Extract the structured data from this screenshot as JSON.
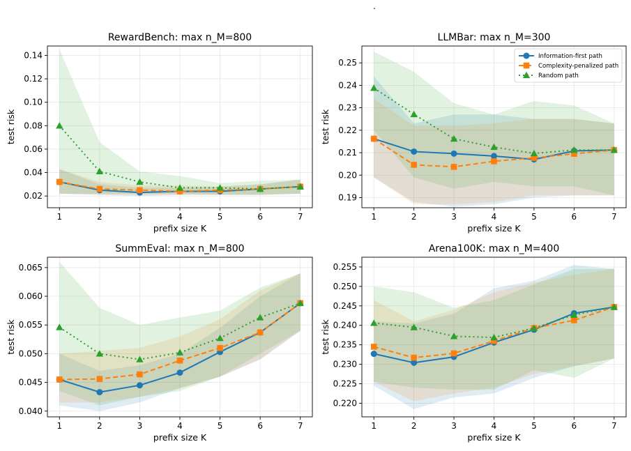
{
  "figure_note": ".",
  "colors": {
    "info": "#1f77b4",
    "complexity": "#ff7f0e",
    "random": "#2ca02c",
    "grid": "#e6e6e6"
  },
  "legend_entries": [
    "Information-first path",
    "Complexity-penalized path",
    "Random path"
  ],
  "chart_data": [
    {
      "type": "line",
      "title": "RewardBench: max n_M=800",
      "xlabel": "prefix size K",
      "ylabel": "test risk",
      "x": [
        1,
        2,
        3,
        4,
        5,
        6,
        7
      ],
      "ylim": [
        0.01,
        0.148
      ],
      "yticks": [
        "0.02",
        "0.04",
        "0.06",
        "0.08",
        "0.10",
        "0.12",
        "0.14"
      ],
      "ytick_values": [
        0.02,
        0.04,
        0.06,
        0.08,
        0.1,
        0.12,
        0.14
      ],
      "grid": true,
      "legend": "none",
      "series": [
        {
          "name": "Information-first path",
          "values": [
            0.032,
            0.025,
            0.023,
            0.024,
            0.024,
            0.026,
            0.028
          ],
          "lower": [
            0.022,
            0.021,
            0.02,
            0.021,
            0.021,
            0.021,
            0.022
          ],
          "upper": [
            0.043,
            0.03,
            0.027,
            0.027,
            0.028,
            0.03,
            0.034
          ]
        },
        {
          "name": "Complexity-penalized path",
          "values": [
            0.032,
            0.026,
            0.025,
            0.024,
            0.025,
            0.026,
            0.028
          ],
          "lower": [
            0.022,
            0.021,
            0.021,
            0.021,
            0.021,
            0.021,
            0.022
          ],
          "upper": [
            0.043,
            0.032,
            0.029,
            0.029,
            0.028,
            0.03,
            0.034
          ]
        },
        {
          "name": "Random path",
          "values": [
            0.08,
            0.041,
            0.032,
            0.027,
            0.027,
            0.026,
            0.028
          ],
          "lower": [
            0.022,
            0.022,
            0.022,
            0.022,
            0.021,
            0.021,
            0.022
          ],
          "upper": [
            0.145,
            0.066,
            0.041,
            0.037,
            0.031,
            0.033,
            0.034
          ]
        }
      ]
    },
    {
      "type": "line",
      "title": "LLMBar: max n_M=300",
      "xlabel": "prefix size K",
      "ylabel": "test risk",
      "x": [
        1,
        2,
        3,
        4,
        5,
        6,
        7
      ],
      "ylim": [
        0.1855,
        0.2575
      ],
      "yticks": [
        "0.19",
        "0.20",
        "0.21",
        "0.22",
        "0.23",
        "0.24",
        "0.25"
      ],
      "ytick_values": [
        0.19,
        0.2,
        0.21,
        0.22,
        0.23,
        0.24,
        0.25
      ],
      "grid": true,
      "legend": "top-right",
      "series": [
        {
          "name": "Information-first path",
          "values": [
            0.2162,
            0.2105,
            0.2096,
            0.2085,
            0.207,
            0.2108,
            0.2112
          ],
          "lower": [
            0.199,
            0.188,
            0.186,
            0.187,
            0.19,
            0.191,
            0.191
          ],
          "upper": [
            0.244,
            0.223,
            0.227,
            0.227,
            0.225,
            0.225,
            0.223
          ]
        },
        {
          "name": "Complexity-penalized path",
          "values": [
            0.2162,
            0.2046,
            0.2037,
            0.2062,
            0.2077,
            0.2095,
            0.2112
          ],
          "lower": [
            0.199,
            0.187,
            0.187,
            0.188,
            0.191,
            0.191,
            0.191
          ],
          "upper": [
            0.234,
            0.222,
            0.222,
            0.223,
            0.225,
            0.225,
            0.223
          ]
        },
        {
          "name": "Random path",
          "values": [
            0.2388,
            0.2271,
            0.2162,
            0.2125,
            0.2097,
            0.2112,
            0.2112
          ],
          "lower": [
            0.22,
            0.199,
            0.194,
            0.197,
            0.195,
            0.195,
            0.191
          ],
          "upper": [
            0.255,
            0.246,
            0.232,
            0.227,
            0.233,
            0.231,
            0.223
          ]
        }
      ]
    },
    {
      "type": "line",
      "title": "SummEval: max n_M=800",
      "xlabel": "prefix size K",
      "ylabel": "test risk",
      "x": [
        1,
        2,
        3,
        4,
        5,
        6,
        7
      ],
      "ylim": [
        0.039,
        0.0668
      ],
      "yticks": [
        "0.040",
        "0.045",
        "0.050",
        "0.055",
        "0.060",
        "0.065"
      ],
      "ytick_values": [
        0.04,
        0.045,
        0.05,
        0.055,
        0.06,
        0.065
      ],
      "grid": true,
      "legend": "none",
      "series": [
        {
          "name": "Information-first path",
          "values": [
            0.0455,
            0.0433,
            0.0445,
            0.0467,
            0.0503,
            0.0537,
            0.0588
          ],
          "lower": [
            0.041,
            0.04,
            0.0415,
            0.044,
            0.046,
            0.049,
            0.054
          ],
          "upper": [
            0.05,
            0.047,
            0.048,
            0.05,
            0.0545,
            0.06,
            0.064
          ]
        },
        {
          "name": "Complexity-penalized path",
          "values": [
            0.0455,
            0.0456,
            0.0464,
            0.0488,
            0.051,
            0.0537,
            0.0588
          ],
          "lower": [
            0.0415,
            0.0415,
            0.0425,
            0.044,
            0.046,
            0.049,
            0.054
          ],
          "upper": [
            0.05,
            0.0505,
            0.051,
            0.053,
            0.056,
            0.061,
            0.064
          ]
        },
        {
          "name": "Random path",
          "values": [
            0.0546,
            0.05,
            0.049,
            0.0502,
            0.0527,
            0.0563,
            0.0588
          ],
          "lower": [
            0.0435,
            0.041,
            0.0425,
            0.0435,
            0.046,
            0.05,
            0.054
          ],
          "upper": [
            0.066,
            0.058,
            0.055,
            0.0563,
            0.0575,
            0.0615,
            0.064
          ]
        }
      ]
    },
    {
      "type": "line",
      "title": "Arena100K: max n_M=400",
      "xlabel": "prefix size K",
      "ylabel": "test risk",
      "x": [
        1,
        2,
        3,
        4,
        5,
        6,
        7
      ],
      "ylim": [
        0.2165,
        0.2575
      ],
      "yticks": [
        "0.220",
        "0.225",
        "0.230",
        "0.235",
        "0.240",
        "0.245",
        "0.250",
        "0.255"
      ],
      "ytick_values": [
        0.22,
        0.225,
        0.23,
        0.235,
        0.24,
        0.245,
        0.25,
        0.255
      ],
      "grid": true,
      "legend": "none",
      "series": [
        {
          "name": "Information-first path",
          "values": [
            0.2327,
            0.2304,
            0.2319,
            0.2356,
            0.2389,
            0.2431,
            0.2447
          ],
          "lower": [
            0.2245,
            0.2185,
            0.2215,
            0.2225,
            0.2265,
            0.2295,
            0.2315
          ],
          "upper": [
            0.241,
            0.2405,
            0.243,
            0.2495,
            0.2515,
            0.2555,
            0.2545
          ]
        },
        {
          "name": "Complexity-penalized path",
          "values": [
            0.2345,
            0.2317,
            0.2328,
            0.236,
            0.2393,
            0.2413,
            0.2447
          ],
          "lower": [
            0.2255,
            0.2205,
            0.2225,
            0.224,
            0.2275,
            0.2295,
            0.2315
          ],
          "upper": [
            0.2465,
            0.241,
            0.244,
            0.2485,
            0.251,
            0.253,
            0.2545
          ]
        },
        {
          "name": "Random path",
          "values": [
            0.2406,
            0.2395,
            0.2372,
            0.2369,
            0.2393,
            0.2427,
            0.2447
          ],
          "lower": [
            0.2255,
            0.224,
            0.2235,
            0.2235,
            0.2285,
            0.2265,
            0.2315
          ],
          "upper": [
            0.25,
            0.2485,
            0.2445,
            0.2465,
            0.2505,
            0.2545,
            0.2545
          ]
        }
      ]
    }
  ]
}
